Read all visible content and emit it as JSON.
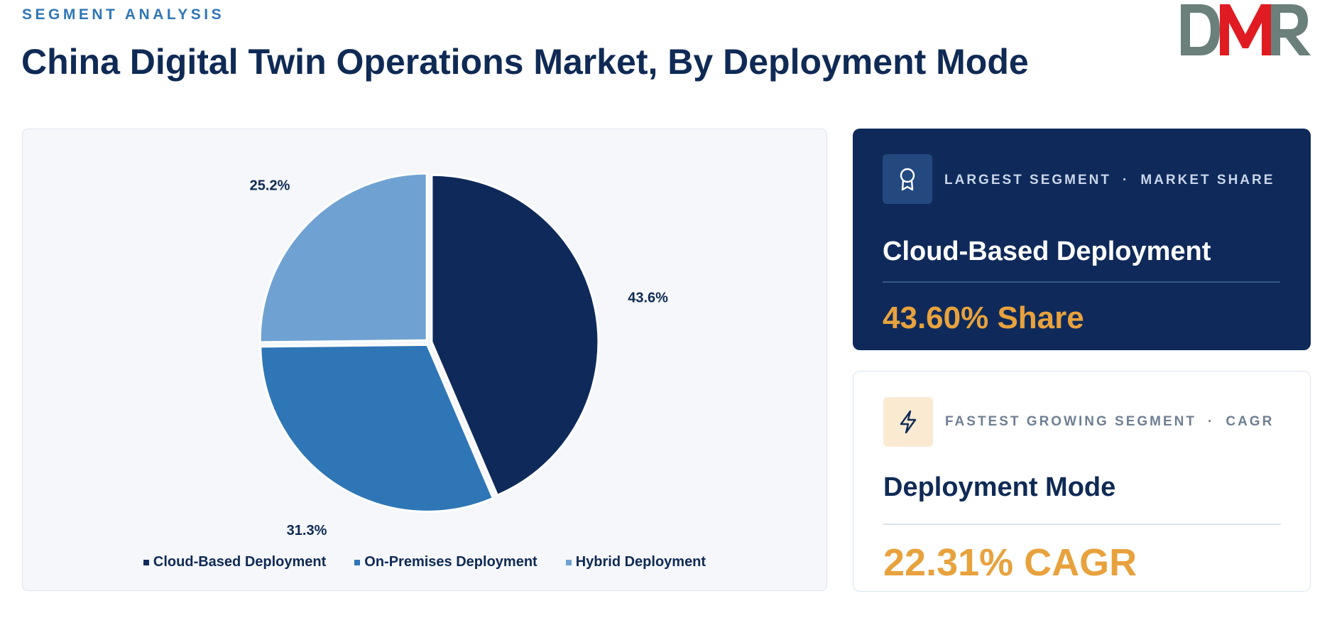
{
  "header": {
    "eyebrow": "SEGMENT ANALYSIS",
    "title": "China Digital Twin Operations Market, By Deployment Mode"
  },
  "logo": {
    "text": "DMR",
    "colors": {
      "gray": "#6b7f7b",
      "red": "#e11b22"
    }
  },
  "chart_data": {
    "type": "pie",
    "title": "",
    "slices": [
      {
        "label": "Cloud-Based Deployment",
        "value": 43.6,
        "display": "43.6%",
        "color": "#0f2a5a"
      },
      {
        "label": "On-Premises Deployment",
        "value": 31.3,
        "display": "31.3%",
        "color": "#2f76b6"
      },
      {
        "label": "Hybrid Deployment",
        "value": 25.2,
        "display": "25.2%",
        "color": "#6fa2d2"
      }
    ],
    "start_angle": "12 o'clock",
    "direction": "clockwise",
    "legend_position": "bottom"
  },
  "cards": {
    "largest": {
      "icon": "award-ribbon-icon",
      "kicker_left": "LARGEST SEGMENT",
      "kicker_sep": "·",
      "kicker_right": "MARKET SHARE",
      "name": "Cloud-Based Deployment",
      "metric": "43.60% Share"
    },
    "fastest": {
      "icon": "lightning-bolt-icon",
      "kicker_left": "FASTEST GROWING SEGMENT",
      "kicker_sep": "·",
      "kicker_right": "CAGR",
      "name": "Deployment Mode",
      "metric": "22.31% CAGR"
    }
  },
  "colors": {
    "navy": "#0f2a5a",
    "accent": "#e8a23d",
    "blue": "#2f76b6"
  }
}
